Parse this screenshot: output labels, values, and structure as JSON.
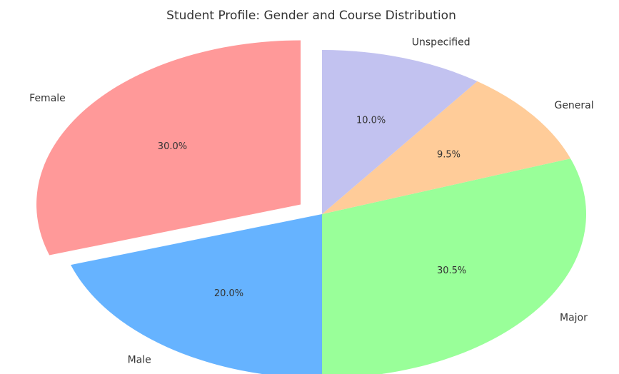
{
  "chart_data": {
    "type": "pie",
    "title": "Student Profile: Gender and Course Distribution",
    "categories": [
      "Female",
      "Male",
      "Major",
      "General",
      "Unspecified"
    ],
    "values": [
      30,
      20,
      30.5,
      9.5,
      10
    ],
    "value_labels": [
      "30.0%",
      "20.0%",
      "30.5%",
      "9.5%",
      "10.0%"
    ],
    "colors": [
      "#ff9999",
      "#66b3ff",
      "#99ff99",
      "#ffcc99",
      "#c2c2f0"
    ],
    "explode": [
      0.1,
      0,
      0,
      0,
      0
    ],
    "startangle": 90
  }
}
